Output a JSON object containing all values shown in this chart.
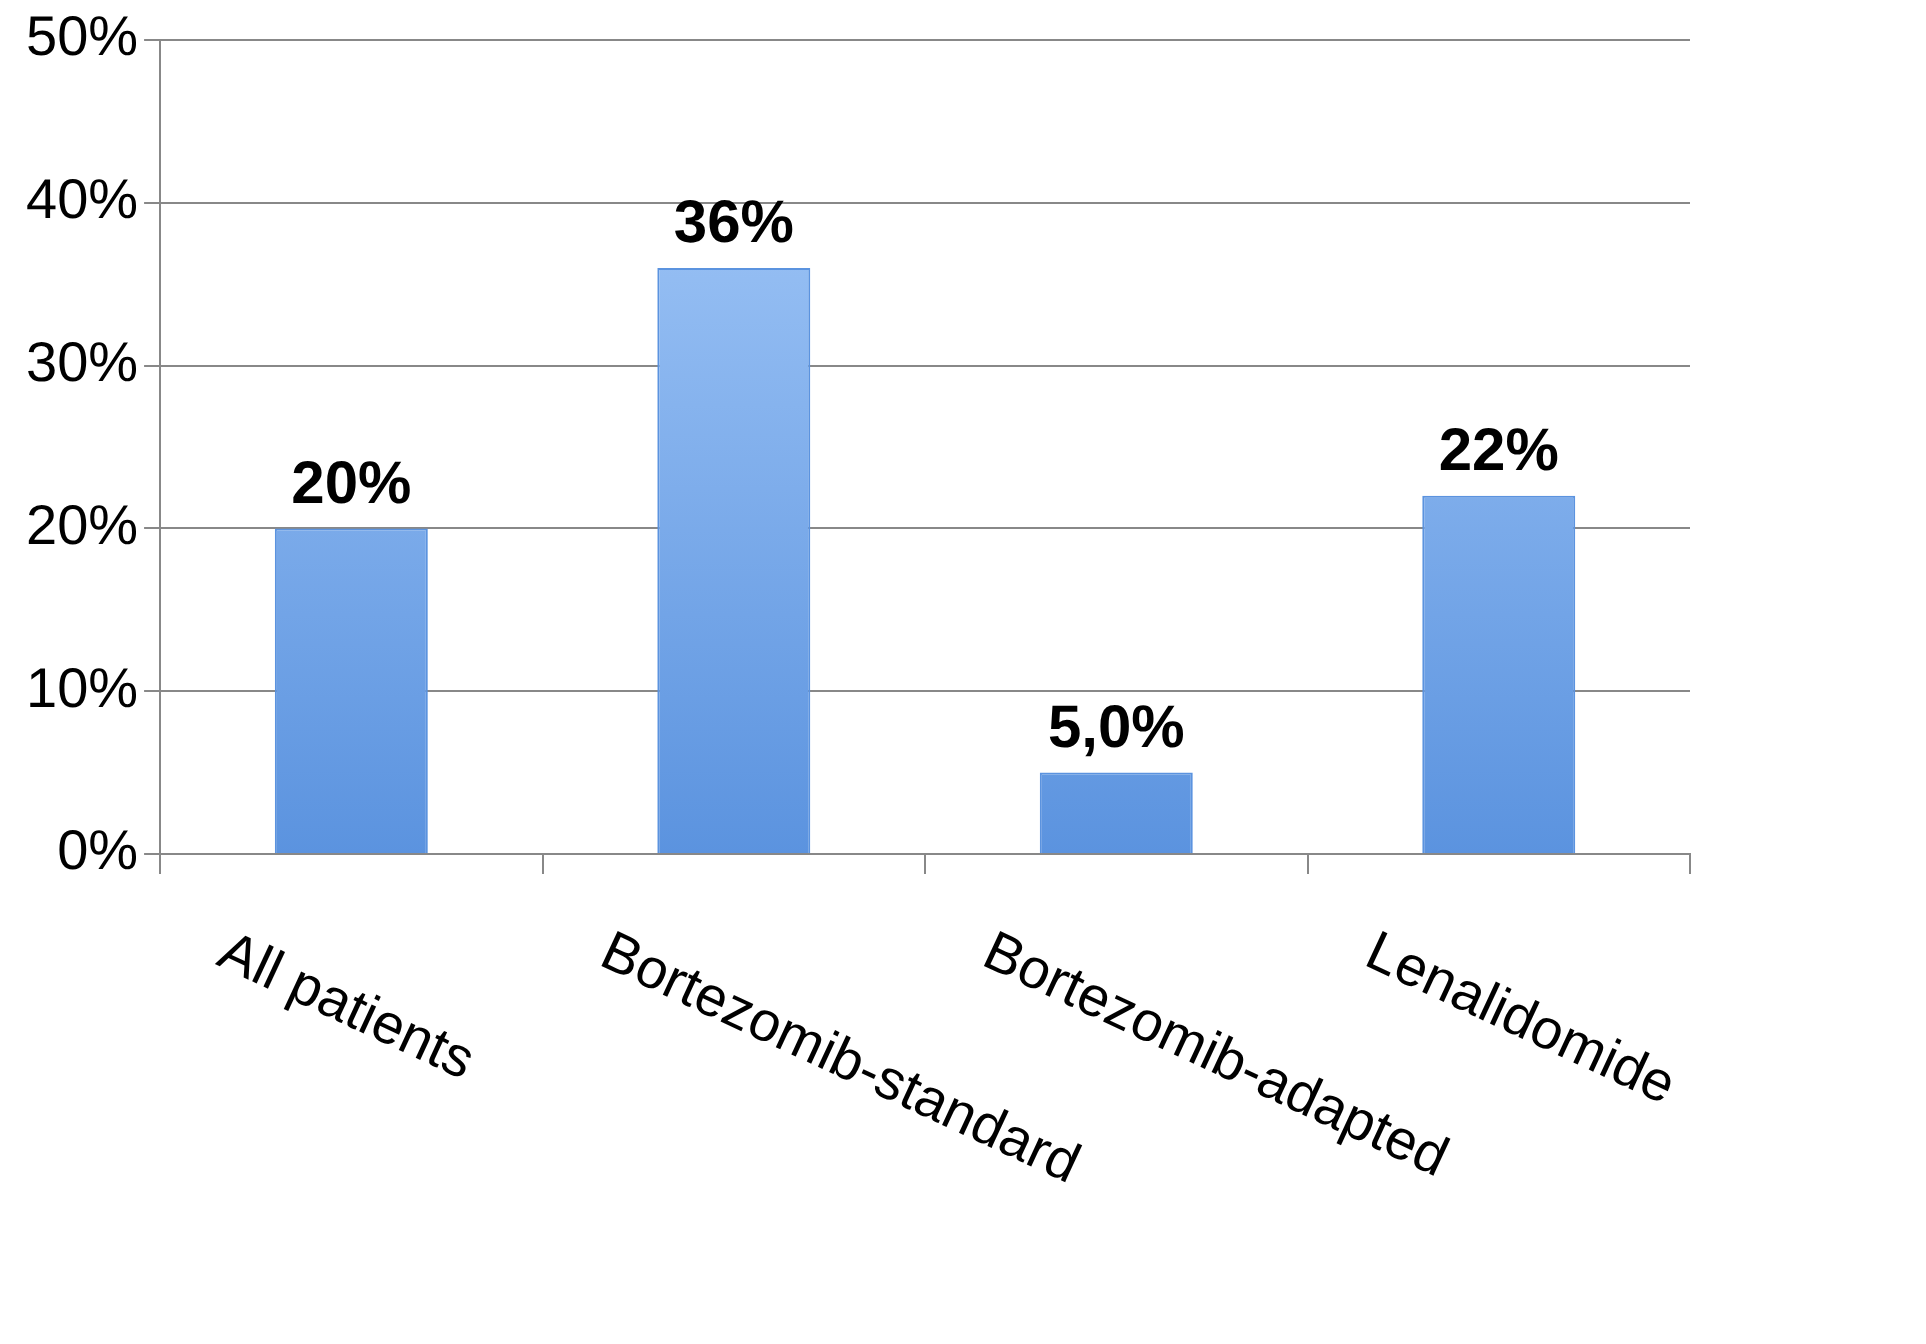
{
  "chart_data": {
    "type": "bar",
    "categories": [
      "All patients",
      "Bortezomib-standard",
      "Bortezomib-adapted",
      "Lenalidomide"
    ],
    "values": [
      20,
      36,
      5,
      22
    ],
    "value_labels": [
      "20%",
      "36%",
      "5,0%",
      "22%"
    ],
    "color": "#5b93df",
    "ylim": [
      0,
      50
    ],
    "yticks": [
      {
        "value": 0,
        "label": "0%"
      },
      {
        "value": 10,
        "label": "10%"
      },
      {
        "value": 20,
        "label": "20%"
      },
      {
        "value": 30,
        "label": "30%"
      },
      {
        "value": 40,
        "label": "40%"
      },
      {
        "value": 50,
        "label": "50%"
      }
    ],
    "grid": "y",
    "legend": false
  }
}
